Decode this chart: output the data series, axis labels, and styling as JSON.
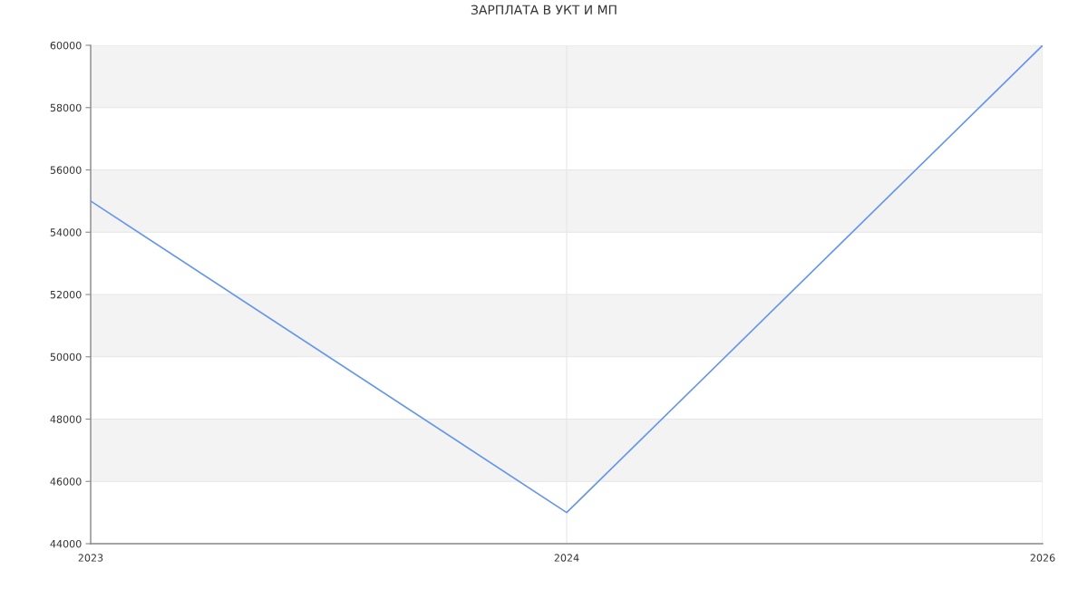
{
  "chart_data": {
    "type": "line",
    "title": "ЗАРПЛАТА В УКТ И МП",
    "categories": [
      "2023",
      "2024",
      "2026"
    ],
    "series": [
      {
        "color": "#6495ed",
        "values": [
          55000,
          45000,
          60000
        ]
      }
    ],
    "ylim": [
      44000,
      60000
    ],
    "yticks": [
      44000,
      46000,
      48000,
      50000,
      52000,
      54000,
      56000,
      58000,
      60000
    ],
    "bands": [
      {
        "axis": "y",
        "from": 46000,
        "to": 48000,
        "color": "#f3f3f3"
      },
      {
        "axis": "y",
        "from": 50000,
        "to": 52000,
        "color": "#f3f3f3"
      },
      {
        "axis": "y",
        "from": 54000,
        "to": 56000,
        "color": "#f3f3f3"
      },
      {
        "axis": "y",
        "from": 58000,
        "to": 60000,
        "color": "#f3f3f3"
      }
    ],
    "grid": true,
    "marker": "none",
    "line_style": "solid"
  }
}
